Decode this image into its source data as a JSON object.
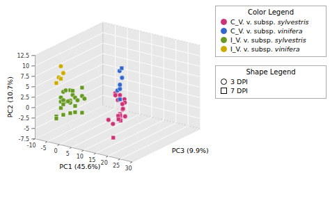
{
  "chart_data": {
    "type": "scatter3d",
    "xlabel": "PC1 (45.6%)",
    "ylabel": "PC2 (10.7%)",
    "zlabel": "PC3 (9.9%)",
    "xlim": [
      -10,
      30
    ],
    "ylim": [
      -7.5,
      12.5
    ],
    "zlim": [
      7,
      -8
    ],
    "xticks": [
      -10,
      -5,
      0,
      5,
      10,
      15,
      20,
      25,
      30
    ],
    "yticks": [
      -7.5,
      -5,
      -2.5,
      0,
      2.5,
      5,
      7.5,
      10,
      12.5
    ],
    "zticks": [],
    "grid": true,
    "series": [
      {
        "name": "C_V. v. subsp. sylvestris",
        "color": "#cc3377",
        "marker": "circle",
        "values": [
          [
            10,
            2.5,
            0
          ],
          [
            10,
            1.5,
            -1
          ],
          [
            10,
            0.5,
            -1
          ],
          [
            10,
            0.0,
            -2
          ],
          [
            11,
            1.0,
            0
          ],
          [
            12,
            0.0,
            -1
          ],
          [
            13,
            -1.0,
            0
          ],
          [
            14,
            -2.0,
            1
          ],
          [
            14,
            -2.5,
            0
          ],
          [
            15,
            0.0,
            1
          ],
          [
            9,
            -3.5,
            1
          ],
          [
            9,
            -5.0,
            0
          ],
          [
            10,
            2.0,
            0
          ],
          [
            11,
            -0.5,
            -1
          ]
        ]
      },
      {
        "name": "C_V. v. subsp. sylvestris",
        "color": "#cc3377",
        "marker": "square",
        "values": [
          [
            10,
            -3.0,
            -1
          ],
          [
            10,
            -4.0,
            -1
          ],
          [
            11,
            -7.5,
            1
          ],
          [
            12,
            -2.5,
            0
          ],
          [
            13,
            -2.0,
            1
          ],
          [
            14,
            -3.0,
            1
          ],
          [
            15,
            -2.0,
            2
          ]
        ]
      },
      {
        "name": "C_V. v. subsp. vinifera",
        "color": "#3366cc",
        "marker": "circle",
        "values": [
          [
            8,
            6.5,
            -2
          ],
          [
            9,
            5.0,
            -2
          ],
          [
            9,
            2.5,
            -1
          ],
          [
            10,
            3.0,
            -1
          ],
          [
            10,
            4.0,
            -1
          ]
        ]
      },
      {
        "name": "C_V. v. subsp. vinifera",
        "color": "#3366cc",
        "marker": "square",
        "values": [
          [
            7,
            6.5,
            -3
          ],
          [
            10,
            0.5,
            -1
          ]
        ]
      },
      {
        "name": "I_V. v. subsp. sylvestris",
        "color": "#669922",
        "marker": "circle",
        "values": [
          [
            -5,
            1.5,
            4
          ],
          [
            -5,
            0.5,
            4
          ],
          [
            -5,
            0.0,
            3
          ],
          [
            -4,
            1.0,
            4
          ],
          [
            -3,
            0.5,
            3
          ],
          [
            -3,
            0.0,
            3
          ],
          [
            -2,
            2.0,
            3
          ],
          [
            -2,
            1.0,
            4
          ],
          [
            -1,
            1.5,
            3
          ],
          [
            0,
            1.5,
            2
          ],
          [
            0,
            1.0,
            3
          ],
          [
            1,
            1.0,
            2
          ],
          [
            -4,
            3.0,
            4
          ],
          [
            -3,
            3.5,
            4
          ]
        ]
      },
      {
        "name": "I_V. v. subsp. sylvestris",
        "color": "#669922",
        "marker": "square",
        "values": [
          [
            -5,
            -1.0,
            4
          ],
          [
            -5,
            -2.5,
            5
          ],
          [
            -5,
            -3.0,
            5
          ],
          [
            -4,
            -2.5,
            4
          ],
          [
            -4,
            0.0,
            4
          ],
          [
            -3,
            -2.5,
            3
          ],
          [
            -3,
            3.0,
            3
          ],
          [
            -2,
            3.0,
            3
          ],
          [
            -1,
            -0.5,
            3
          ],
          [
            -1,
            -2.0,
            3
          ],
          [
            0,
            -2.5,
            2
          ],
          [
            0,
            3.5,
            2
          ]
        ]
      },
      {
        "name": "I_V. v. subsp. vinifera",
        "color": "#ccaa00",
        "marker": "circle",
        "values": [
          [
            -5,
            9.0,
            4
          ],
          [
            -4,
            7.5,
            4
          ],
          [
            -4,
            7.0,
            5
          ]
        ]
      },
      {
        "name": "I_V. v. subsp. vinifera",
        "color": "#ccaa00",
        "marker": "square",
        "values": [
          [
            -5,
            6.0,
            4
          ],
          [
            -5,
            5.5,
            5
          ]
        ]
      }
    ],
    "color_legend": {
      "title": "Color Legend",
      "entries": [
        {
          "label": "C_V. v. subsp. sylvestris",
          "color": "#cc3377"
        },
        {
          "label": "C_V. v. subsp. vinifera",
          "color": "#3366cc"
        },
        {
          "label": "I_V. v. subsp. sylvestris",
          "color": "#669922"
        },
        {
          "label": "I_V. v. subsp. vinifera",
          "color": "#ccaa00"
        }
      ]
    },
    "shape_legend": {
      "title": "Shape Legend",
      "entries": [
        {
          "label": "3 DPI",
          "marker": "circle"
        },
        {
          "label": "7 DPI",
          "marker": "square"
        }
      ]
    }
  }
}
